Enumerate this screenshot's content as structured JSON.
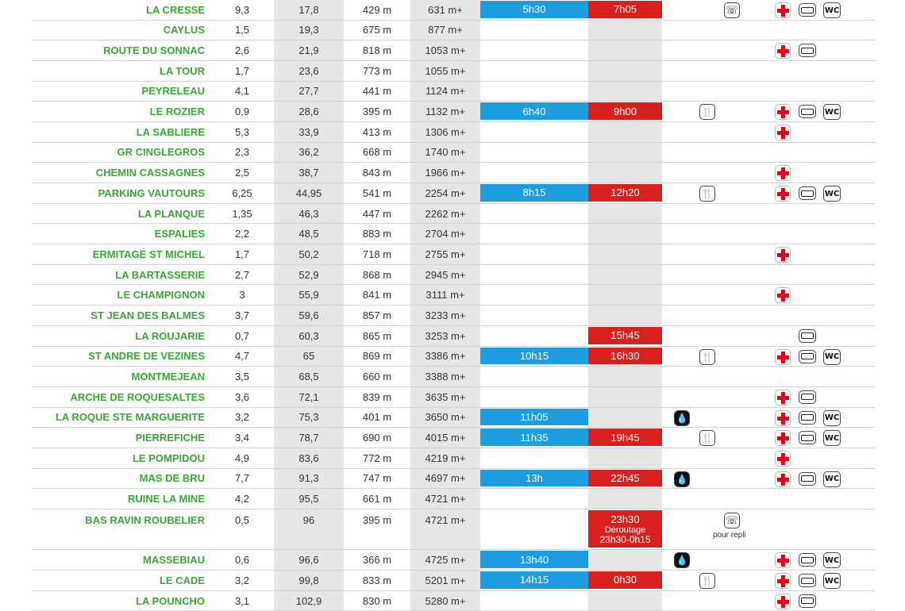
{
  "rows": [
    {
      "name": "LA CRESSE",
      "dist": "9,3",
      "cum": "17,8",
      "alt": "429 m",
      "dplus": "631 m+",
      "blue": "5h30",
      "red": "7h05",
      "icons": [
        "phone",
        "cross",
        "bus",
        "wc"
      ]
    },
    {
      "name": "CAYLUS",
      "dist": "1,5",
      "cum": "19,3",
      "alt": "675 m",
      "dplus": "877 m+",
      "blue": "",
      "red": "",
      "icons": []
    },
    {
      "name": "ROUTE DU SONNAC",
      "dist": "2,6",
      "cum": "21,9",
      "alt": "818 m",
      "dplus": "1053 m+",
      "blue": "",
      "red": "",
      "icons": [
        "cross",
        "bus"
      ]
    },
    {
      "name": "LA TOUR",
      "dist": "1,7",
      "cum": "23,6",
      "alt": "773 m",
      "dplus": "1055 m+",
      "blue": "",
      "red": "",
      "icons": []
    },
    {
      "name": "PEYRELEAU",
      "dist": "4,1",
      "cum": "27,7",
      "alt": "441 m",
      "dplus": "1124 m+",
      "blue": "",
      "red": "",
      "icons": []
    },
    {
      "name": "LE ROZIER",
      "dist": "0,9",
      "cum": "28,6",
      "alt": "395 m",
      "dplus": "1132 m+",
      "blue": "6h40",
      "red": "9h00",
      "icons": [
        "fork",
        "cross",
        "bus",
        "wc"
      ]
    },
    {
      "name": "LA SABLIERE",
      "dist": "5,3",
      "cum": "33,9",
      "alt": "413 m",
      "dplus": "1306 m+",
      "blue": "",
      "red": "",
      "icons": [
        "cross"
      ]
    },
    {
      "name": "GR CINGLEGROS",
      "dist": "2,3",
      "cum": "36,2",
      "alt": "668 m",
      "dplus": "1740 m+",
      "blue": "",
      "red": "",
      "icons": []
    },
    {
      "name": "CHEMIN CASSAGNES",
      "dist": "2,5",
      "cum": "38,7",
      "alt": "843 m",
      "dplus": "1966 m+",
      "blue": "",
      "red": "",
      "icons": [
        "cross"
      ]
    },
    {
      "name": "PARKING VAUTOURS",
      "dist": "6,25",
      "cum": "44,95",
      "alt": "541 m",
      "dplus": "2254 m+",
      "blue": "8h15",
      "red": "12h20",
      "icons": [
        "fork",
        "cross",
        "bus",
        "wc"
      ]
    },
    {
      "name": "LA PLANQUE",
      "dist": "1,35",
      "cum": "46,3",
      "alt": "447 m",
      "dplus": "2262 m+",
      "blue": "",
      "red": "",
      "icons": []
    },
    {
      "name": "ESPALIES",
      "dist": "2,2",
      "cum": "48,5",
      "alt": "883 m",
      "dplus": "2704 m+",
      "blue": "",
      "red": "",
      "icons": []
    },
    {
      "name": "ERMITAGE ST MICHEL",
      "dist": "1,7",
      "cum": "50,2",
      "alt": "718 m",
      "dplus": "2755 m+",
      "blue": "",
      "red": "",
      "icons": [
        "cross"
      ]
    },
    {
      "name": "LA BARTASSERIE",
      "dist": "2,7",
      "cum": "52,9",
      "alt": "868 m",
      "dplus": "2945 m+",
      "blue": "",
      "red": "",
      "icons": []
    },
    {
      "name": "LE CHAMPIGNON",
      "dist": "3",
      "cum": "55,9",
      "alt": "841 m",
      "dplus": "3111 m+",
      "blue": "",
      "red": "",
      "icons": [
        "cross"
      ]
    },
    {
      "name": "ST JEAN DES BALMES",
      "dist": "3,7",
      "cum": "59,6",
      "alt": "857 m",
      "dplus": "3233 m+",
      "blue": "",
      "red": "",
      "icons": []
    },
    {
      "name": "LA ROUJARIE",
      "dist": "0,7",
      "cum": "60,3",
      "alt": "865 m",
      "dplus": "3253 m+",
      "blue": "",
      "red": "15h45",
      "icons": [
        "bus"
      ]
    },
    {
      "name": "ST ANDRE DE VEZINES",
      "dist": "4,7",
      "cum": "65",
      "alt": "869 m",
      "dplus": "3386 m+",
      "blue": "10h15",
      "red": "16h30",
      "icons": [
        "fork",
        "cross",
        "bus",
        "wc"
      ]
    },
    {
      "name": "MONTMEJEAN",
      "dist": "3,5",
      "cum": "68,5",
      "alt": "660 m",
      "dplus": "3388 m+",
      "blue": "",
      "red": "",
      "icons": []
    },
    {
      "name": "ARCHE DE ROQUESALTES",
      "dist": "3,6",
      "cum": "72,1",
      "alt": "839 m",
      "dplus": "3635 m+",
      "blue": "",
      "red": "",
      "icons": [
        "cross",
        "bus"
      ]
    },
    {
      "name": "LA ROQUE STE MARGUERITE",
      "dist": "3,2",
      "cum": "75,3",
      "alt": "401 m",
      "dplus": "3650 m+",
      "blue": "11h05",
      "red": "",
      "icons": [
        "water",
        "cross",
        "bus",
        "wc"
      ]
    },
    {
      "name": "PIERREFICHE",
      "dist": "3,4",
      "cum": "78,7",
      "alt": "690 m",
      "dplus": "4015 m+",
      "blue": "11h35",
      "red": "19h45",
      "icons": [
        "fork",
        "cross",
        "bus",
        "wc"
      ]
    },
    {
      "name": "LE POMPIDOU",
      "dist": "4,9",
      "cum": "83,6",
      "alt": "772 m",
      "dplus": "4219 m+",
      "blue": "",
      "red": "",
      "icons": [
        "cross"
      ]
    },
    {
      "name": "MAS DE BRU",
      "dist": "7,7",
      "cum": "91,3",
      "alt": "747 m",
      "dplus": "4697 m+",
      "blue": "13h",
      "red": "22h45",
      "icons": [
        "water",
        "cross",
        "bus",
        "wc"
      ]
    },
    {
      "name": "RUINE LA MINE",
      "dist": "4,2",
      "cum": "95,5",
      "alt": "661 m",
      "dplus": "4721 m+",
      "blue": "",
      "red": "",
      "icons": []
    },
    {
      "name": "BAS RAVIN ROUBELIER",
      "dist": "0,5",
      "cum": "96",
      "alt": "395 m",
      "dplus": "4721 m+",
      "blue": "",
      "red": "23h30",
      "red_sub": "Déroutage",
      "red_sub2": "23h30-0h15",
      "note": "pour repli",
      "icons": [
        "phone"
      ],
      "tall": true
    },
    {
      "name": "MASSEBIAU",
      "dist": "0,6",
      "cum": "96,6",
      "alt": "366 m",
      "dplus": "4725 m+",
      "blue": "13h40",
      "red": "",
      "icons": [
        "water",
        "cross",
        "bus",
        "wc"
      ]
    },
    {
      "name": "LE CADE",
      "dist": "3,2",
      "cum": "99,8",
      "alt": "833 m",
      "dplus": "5201 m+",
      "blue": "14h15",
      "red": "0h30",
      "icons": [
        "fork",
        "cross",
        "bus",
        "wc"
      ]
    },
    {
      "name": "LA POUNCHO",
      "dist": "3,1",
      "cum": "102,9",
      "alt": "830 m",
      "dplus": "5280 m+",
      "blue": "",
      "red": "",
      "icons": [
        "cross",
        "bus"
      ]
    }
  ],
  "icon_glyphs": {
    "phone": "☏",
    "fork": "🍴",
    "water": "💧",
    "wc": "WC"
  },
  "colors": {
    "name_green": "#3aa836",
    "blue": "#1d9de0",
    "red": "#d8201f",
    "shade": "#e6e6e6"
  }
}
